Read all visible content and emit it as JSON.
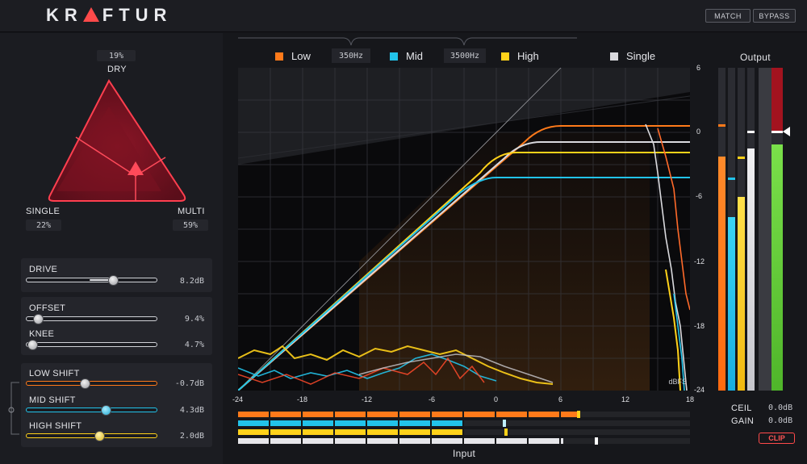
{
  "app": {
    "logo_left": "KR",
    "logo_right": "FTUR",
    "match_label": "MATCH",
    "bypass_label": "BYPASS"
  },
  "mixer": {
    "dry_label": "DRY",
    "dry_value": "19%",
    "single_label": "SINGLE",
    "single_value": "22%",
    "multi_label": "MULTI",
    "multi_value": "59%"
  },
  "controls": {
    "drive": {
      "label": "DRIVE",
      "value": "8.2dB",
      "position": 0.66
    },
    "offset": {
      "label": "OFFSET",
      "value": "9.4%",
      "position": 0.09
    },
    "knee": {
      "label": "KNEE",
      "value": "4.7%",
      "position": 0.05
    },
    "low_shift": {
      "label": "LOW SHIFT",
      "value": "-0.7dB",
      "position": 0.45
    },
    "mid_shift": {
      "label": "MID SHIFT",
      "value": "4.3dB",
      "position": 0.61
    },
    "high_shift": {
      "label": "HIGH SHIFT",
      "value": "2.0dB",
      "position": 0.56
    }
  },
  "legend": {
    "low": "Low",
    "mid": "Mid",
    "high": "High",
    "single": "Single",
    "crossover_1": "350Hz",
    "crossover_2": "3500Hz"
  },
  "colors": {
    "low": "#ff7a1a",
    "mid": "#22c3ea",
    "high": "#ffd21a",
    "single": "#d9d9dd",
    "accent": "#ff4a4a",
    "output_green": "#6cd23a",
    "output_red": "#a3131f"
  },
  "graph": {
    "x_ticks": [
      "-24",
      "-18",
      "-12",
      "-6",
      "0",
      "6",
      "12",
      "18"
    ],
    "y_ticks": [
      "6",
      "0",
      "-6",
      "-12",
      "-18",
      "-24"
    ],
    "unit": "dBFS",
    "x_label": "Input"
  },
  "output": {
    "title": "Output",
    "ceil_label": "CEIL",
    "ceil_value": "0.0dB",
    "gain_label": "GAIN",
    "gain_value": "0.0dB",
    "clip_label": "CLIP"
  },
  "input_meters": [
    {
      "band": "low",
      "level": 0.75,
      "peak": 0.75
    },
    {
      "band": "mid",
      "level": 0.5,
      "peak": 0.585
    },
    {
      "band": "high",
      "level": 0.5,
      "peak": 0.59
    },
    {
      "band": "single",
      "level": 0.72,
      "peak": 0.79
    }
  ]
}
